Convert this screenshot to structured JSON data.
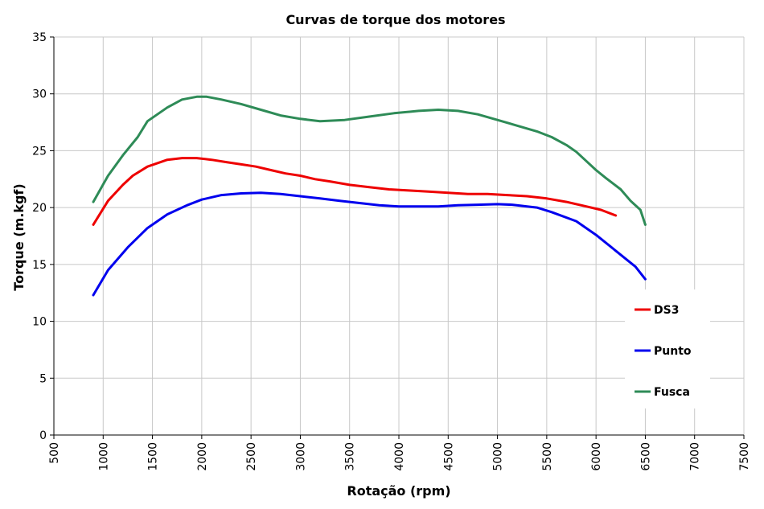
{
  "chart_data": {
    "type": "line",
    "title": "Curvas de torque dos motores",
    "xlabel": "Rotação (rpm)",
    "ylabel": "Torque (m.kgf)",
    "xlim": [
      500,
      7500
    ],
    "ylim": [
      0,
      35
    ],
    "x_ticks": [
      "500",
      "1000",
      "1500",
      "2000",
      "2500",
      "3000",
      "3500",
      "4000",
      "4500",
      "5000",
      "5500",
      "6000",
      "6500",
      "7000",
      "7500"
    ],
    "y_ticks": [
      "0",
      "5",
      "10",
      "15",
      "20",
      "25",
      "30",
      "35"
    ],
    "grid": true,
    "legend_position": "right",
    "series": [
      {
        "name": "DS3",
        "color": "#ee0000",
        "points": [
          [
            900,
            18.5
          ],
          [
            1050,
            20.6
          ],
          [
            1200,
            22.0
          ],
          [
            1300,
            22.8
          ],
          [
            1450,
            23.6
          ],
          [
            1650,
            24.2
          ],
          [
            1800,
            24.35
          ],
          [
            1950,
            24.35
          ],
          [
            2100,
            24.2
          ],
          [
            2250,
            24.0
          ],
          [
            2400,
            23.8
          ],
          [
            2550,
            23.6
          ],
          [
            2700,
            23.3
          ],
          [
            2850,
            23.0
          ],
          [
            3000,
            22.8
          ],
          [
            3150,
            22.5
          ],
          [
            3300,
            22.3
          ],
          [
            3500,
            22.0
          ],
          [
            3700,
            21.8
          ],
          [
            3900,
            21.6
          ],
          [
            4100,
            21.5
          ],
          [
            4300,
            21.4
          ],
          [
            4500,
            21.3
          ],
          [
            4700,
            21.2
          ],
          [
            4900,
            21.2
          ],
          [
            5100,
            21.1
          ],
          [
            5300,
            21.0
          ],
          [
            5500,
            20.8
          ],
          [
            5700,
            20.5
          ],
          [
            5900,
            20.1
          ],
          [
            6050,
            19.8
          ],
          [
            6200,
            19.3
          ]
        ]
      },
      {
        "name": "Punto",
        "color": "#0000ee",
        "points": [
          [
            900,
            12.3
          ],
          [
            1050,
            14.5
          ],
          [
            1250,
            16.5
          ],
          [
            1450,
            18.2
          ],
          [
            1650,
            19.4
          ],
          [
            1850,
            20.2
          ],
          [
            2000,
            20.7
          ],
          [
            2200,
            21.1
          ],
          [
            2400,
            21.25
          ],
          [
            2600,
            21.3
          ],
          [
            2800,
            21.2
          ],
          [
            3000,
            21.0
          ],
          [
            3200,
            20.8
          ],
          [
            3400,
            20.6
          ],
          [
            3600,
            20.4
          ],
          [
            3800,
            20.2
          ],
          [
            4000,
            20.1
          ],
          [
            4200,
            20.1
          ],
          [
            4400,
            20.1
          ],
          [
            4600,
            20.2
          ],
          [
            4800,
            20.25
          ],
          [
            5000,
            20.3
          ],
          [
            5150,
            20.25
          ],
          [
            5300,
            20.1
          ],
          [
            5400,
            20.0
          ],
          [
            5550,
            19.6
          ],
          [
            5800,
            18.8
          ],
          [
            6000,
            17.6
          ],
          [
            6200,
            16.2
          ],
          [
            6400,
            14.8
          ],
          [
            6500,
            13.7
          ]
        ]
      },
      {
        "name": "Fusca",
        "color": "#2e8b57",
        "points": [
          [
            900,
            20.5
          ],
          [
            1050,
            22.8
          ],
          [
            1200,
            24.6
          ],
          [
            1350,
            26.2
          ],
          [
            1450,
            27.6
          ],
          [
            1650,
            28.8
          ],
          [
            1800,
            29.5
          ],
          [
            1950,
            29.75
          ],
          [
            2050,
            29.75
          ],
          [
            2200,
            29.5
          ],
          [
            2400,
            29.1
          ],
          [
            2600,
            28.6
          ],
          [
            2800,
            28.1
          ],
          [
            3000,
            27.8
          ],
          [
            3200,
            27.6
          ],
          [
            3450,
            27.7
          ],
          [
            3700,
            28.0
          ],
          [
            3950,
            28.3
          ],
          [
            4200,
            28.5
          ],
          [
            4400,
            28.6
          ],
          [
            4600,
            28.5
          ],
          [
            4800,
            28.2
          ],
          [
            5000,
            27.7
          ],
          [
            5200,
            27.2
          ],
          [
            5400,
            26.7
          ],
          [
            5550,
            26.2
          ],
          [
            5700,
            25.5
          ],
          [
            5800,
            24.9
          ],
          [
            5900,
            24.1
          ],
          [
            6000,
            23.3
          ],
          [
            6100,
            22.6
          ],
          [
            6250,
            21.6
          ],
          [
            6350,
            20.6
          ],
          [
            6450,
            19.8
          ],
          [
            6500,
            18.5
          ]
        ]
      }
    ]
  }
}
